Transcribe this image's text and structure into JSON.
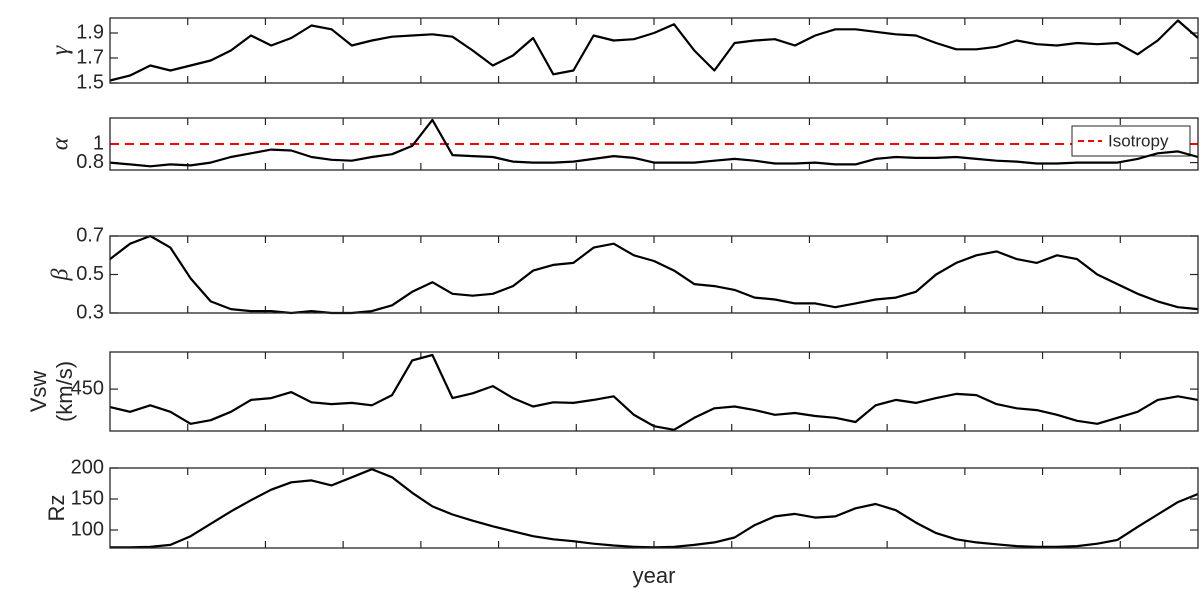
{
  "chart_data": [
    {
      "type": "line",
      "ylabel": "γ",
      "ylim": [
        1.5,
        2.02
      ],
      "yticks": [
        1.5,
        1.7,
        1.9
      ],
      "series": [
        {
          "color": "#000000",
          "values": [
            1.52,
            1.56,
            1.64,
            1.6,
            1.64,
            1.68,
            1.76,
            1.88,
            1.8,
            1.86,
            1.96,
            1.93,
            1.8,
            1.84,
            1.87,
            1.88,
            1.89,
            1.87,
            1.76,
            1.64,
            1.72,
            1.86,
            1.57,
            1.6,
            1.88,
            1.84,
            1.85,
            1.9,
            1.97,
            1.76,
            1.6,
            1.82,
            1.84,
            1.85,
            1.8,
            1.88,
            1.93,
            1.93,
            1.91,
            1.89,
            1.88,
            1.82,
            1.77,
            1.77,
            1.79,
            1.84,
            1.81,
            1.8,
            1.82,
            1.81,
            1.82,
            1.73,
            1.84,
            2.0,
            1.86
          ]
        }
      ]
    },
    {
      "type": "line",
      "ylabel": "α",
      "ylim": [
        0.72,
        1.28
      ],
      "yticks": [
        0.8,
        1
      ],
      "series": [
        {
          "color": "#000000",
          "values": [
            0.8,
            0.78,
            0.76,
            0.78,
            0.77,
            0.8,
            0.86,
            0.9,
            0.94,
            0.93,
            0.86,
            0.83,
            0.82,
            0.86,
            0.89,
            0.98,
            1.26,
            0.88,
            0.87,
            0.86,
            0.81,
            0.8,
            0.8,
            0.81,
            0.84,
            0.87,
            0.85,
            0.8,
            0.8,
            0.8,
            0.82,
            0.84,
            0.82,
            0.79,
            0.79,
            0.8,
            0.78,
            0.78,
            0.84,
            0.86,
            0.85,
            0.85,
            0.86,
            0.84,
            0.82,
            0.81,
            0.79,
            0.79,
            0.8,
            0.8,
            0.8,
            0.84,
            0.9,
            0.92,
            0.86
          ]
        }
      ],
      "hline": {
        "name": "Isotropy",
        "value": 1,
        "color": "#ff0000"
      },
      "legend": "upper right"
    },
    {
      "type": "line",
      "ylabel": "β",
      "ylim": [
        0.3,
        0.7
      ],
      "yticks": [
        0.3,
        0.5,
        0.7
      ],
      "series": [
        {
          "color": "#000000",
          "values": [
            0.58,
            0.66,
            0.7,
            0.64,
            0.48,
            0.36,
            0.32,
            0.31,
            0.31,
            0.3,
            0.31,
            0.3,
            0.3,
            0.31,
            0.34,
            0.41,
            0.46,
            0.4,
            0.39,
            0.4,
            0.44,
            0.52,
            0.55,
            0.56,
            0.64,
            0.66,
            0.6,
            0.57,
            0.52,
            0.45,
            0.44,
            0.42,
            0.38,
            0.37,
            0.35,
            0.35,
            0.33,
            0.35,
            0.37,
            0.38,
            0.41,
            0.5,
            0.56,
            0.6,
            0.62,
            0.58,
            0.56,
            0.6,
            0.58,
            0.5,
            0.45,
            0.4,
            0.36,
            0.33,
            0.32
          ]
        }
      ]
    },
    {
      "type": "line",
      "ylabel": [
        "Vsw",
        "(km/s)"
      ],
      "ylim": [
        380,
        512
      ],
      "yticks": [
        450
      ],
      "series": [
        {
          "color": "#000000",
          "values": [
            420,
            412,
            423,
            412,
            392,
            398,
            412,
            432,
            435,
            445,
            428,
            425,
            427,
            423,
            440,
            498,
            507,
            435,
            443,
            455,
            435,
            421,
            428,
            427,
            432,
            438,
            407,
            388,
            382,
            402,
            418,
            421,
            415,
            407,
            410,
            405,
            402,
            395,
            423,
            432,
            427,
            435,
            442,
            440,
            425,
            418,
            415,
            407,
            397,
            392,
            402,
            412,
            432,
            438,
            432
          ]
        }
      ]
    },
    {
      "type": "line",
      "ylabel": "Rz",
      "ylim": [
        71,
        200
      ],
      "yticks": [
        100,
        150,
        200
      ],
      "xlabel": "year",
      "series": [
        {
          "color": "#000000",
          "values": [
            72,
            72,
            73,
            76,
            90,
            110,
            130,
            148,
            165,
            177,
            180,
            172,
            185,
            198,
            185,
            160,
            138,
            125,
            115,
            106,
            98,
            90,
            85,
            82,
            78,
            75,
            73,
            72,
            73,
            76,
            80,
            88,
            108,
            122,
            126,
            120,
            122,
            135,
            142,
            132,
            112,
            95,
            85,
            80,
            77,
            74,
            73,
            73,
            74,
            78,
            84,
            105,
            125,
            145,
            158
          ]
        }
      ]
    }
  ]
}
